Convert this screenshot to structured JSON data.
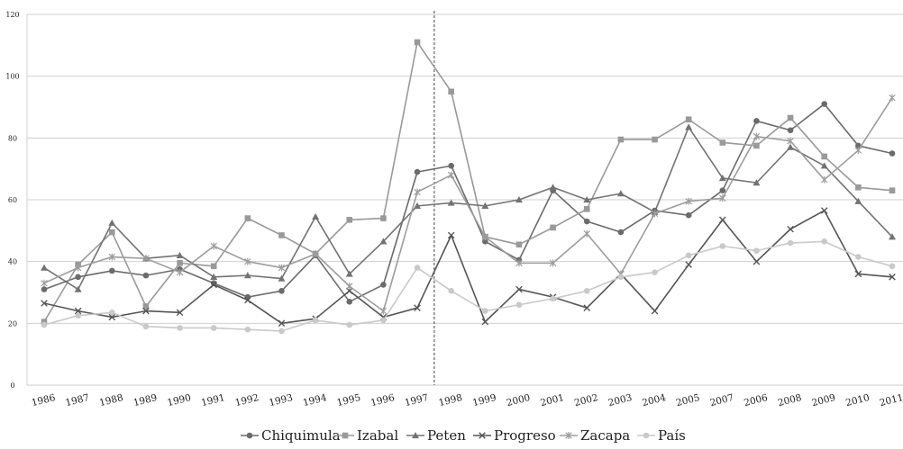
{
  "chart_data": {
    "type": "line",
    "categories": [
      "1986",
      "1987",
      "1988",
      "1989",
      "1990",
      "1991",
      "1992",
      "1993",
      "1994",
      "1995",
      "1996",
      "1997",
      "1998",
      "1999",
      "2000",
      "2001",
      "2002",
      "2003",
      "2004",
      "2005",
      "2007",
      "2006",
      "2008",
      "2009",
      "2010",
      "2011"
    ],
    "ylim": [
      0,
      120
    ],
    "yticks": [
      0,
      20,
      40,
      60,
      80,
      100,
      120
    ],
    "grid": true,
    "vline_after_category": "1997",
    "legend_position": "bottom",
    "series": [
      {
        "name": "Chiquimula",
        "color": "#6b6b6b",
        "marker": "circle",
        "values": [
          31,
          35,
          37,
          35.5,
          37.5,
          33,
          28.5,
          30.5,
          42,
          27,
          32.5,
          69,
          71,
          46.5,
          40.5,
          63,
          53,
          49.5,
          56.5,
          55,
          63,
          85.5,
          82.5,
          91,
          77.5,
          75
        ]
      },
      {
        "name": "Izabal",
        "color": "#999999",
        "marker": "square",
        "values": [
          20.5,
          39,
          49.5,
          25.5,
          39.5,
          38.5,
          54,
          48.5,
          42.5,
          53.5,
          54,
          111,
          95,
          48,
          45.5,
          51,
          57,
          79.5,
          79.5,
          86,
          78.5,
          77.5,
          86.5,
          74,
          64,
          63
        ]
      },
      {
        "name": "Peten",
        "color": "#737373",
        "marker": "triangle",
        "values": [
          38,
          31,
          52.5,
          41,
          42,
          35,
          35.5,
          34.5,
          54.5,
          36,
          46.5,
          58,
          59,
          58,
          60,
          64,
          60,
          62,
          56,
          83.5,
          67,
          65.5,
          77,
          71,
          59.5,
          48
        ]
      },
      {
        "name": "Progreso",
        "color": "#555555",
        "marker": "x",
        "values": [
          26.5,
          24,
          22,
          24,
          23.5,
          32.5,
          27.5,
          20,
          21.5,
          30.5,
          22,
          25,
          48.5,
          20.5,
          31,
          28.5,
          25,
          36,
          24,
          39,
          53.5,
          40,
          50.5,
          56.5,
          36,
          35
        ]
      },
      {
        "name": "Zacapa",
        "color": "#9d9d9d",
        "marker": "star",
        "values": [
          33,
          38,
          41.5,
          41,
          36.5,
          45,
          40,
          38,
          42.5,
          32,
          24,
          62.5,
          68,
          48,
          39.5,
          39.5,
          49,
          36,
          55.5,
          59.5,
          60.5,
          80.5,
          79,
          66.5,
          76,
          93
        ]
      },
      {
        "name": "País",
        "color": "#c9c9c9",
        "marker": "circle",
        "values": [
          19.5,
          22.5,
          23.5,
          19,
          18.5,
          18.5,
          18,
          17.5,
          21,
          19.5,
          21,
          38,
          30.5,
          24,
          26,
          28,
          30.5,
          35,
          36.5,
          42,
          45,
          43.5,
          46,
          46.5,
          41.5,
          38.5
        ]
      }
    ]
  }
}
